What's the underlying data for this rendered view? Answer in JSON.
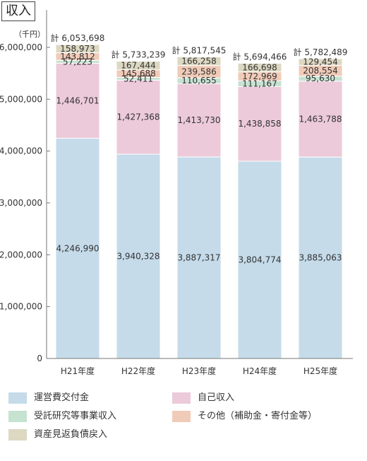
{
  "header": {
    "title": "収入",
    "unit": "（千円）"
  },
  "colors": {
    "operating_grant": "#c5dbea",
    "own_revenue": "#eccada",
    "commissioned_research": "#c6e2d1",
    "other": "#f0cbb8",
    "asset_reversal": "#ddd8c2",
    "axis": "#777777",
    "bar_edge": "#ffffff"
  },
  "legend": [
    {
      "key": "operating_grant",
      "label": "運営費交付金"
    },
    {
      "key": "own_revenue",
      "label": "自己収入"
    },
    {
      "key": "commissioned_research",
      "label": "受託研究等事業収入"
    },
    {
      "key": "other",
      "label": "その他（補助金・寄付金等）"
    },
    {
      "key": "asset_reversal",
      "label": "資産見返負債戻入"
    }
  ],
  "chart_data": {
    "type": "bar",
    "stacked": true,
    "categories": [
      "H21年度",
      "H22年度",
      "H23年度",
      "H24年度",
      "H25年度"
    ],
    "ylim": [
      0,
      6000000
    ],
    "yticks": [
      0,
      1000000,
      2000000,
      3000000,
      4000000,
      5000000,
      6000000
    ],
    "ytick_labels": [
      "0",
      "1,000,000",
      "2,000,000",
      "3,000,000",
      "4,000,000",
      "5,000,000",
      "6,000,000"
    ],
    "series": [
      {
        "key": "operating_grant",
        "name": "運営費交付金",
        "values": [
          4246990,
          3940328,
          3887317,
          3804774,
          3885063
        ],
        "labels": [
          "4,246,990",
          "3,940,328",
          "3,887,317",
          "3,804,774",
          "3,885,063"
        ]
      },
      {
        "key": "own_revenue",
        "name": "自己収入",
        "values": [
          1446701,
          1427368,
          1413730,
          1438858,
          1463788
        ],
        "labels": [
          "1,446,701",
          "1,427,368",
          "1,413,730",
          "1,438,858",
          "1,463,788"
        ]
      },
      {
        "key": "commissioned_research",
        "name": "受託研究等事業収入",
        "values": [
          57223,
          52411,
          110655,
          111167,
          95630
        ],
        "labels": [
          "57,223",
          "52,411",
          "110,655",
          "111,167",
          "95,630"
        ]
      },
      {
        "key": "other",
        "name": "その他（補助金・寄付金等）",
        "values": [
          143812,
          145688,
          239586,
          172969,
          208554
        ],
        "labels": [
          "143,812",
          "145,688",
          "239,586",
          "172,969",
          "208,554"
        ]
      },
      {
        "key": "asset_reversal",
        "name": "資産見返負債戻入",
        "values": [
          158973,
          167444,
          166258,
          166698,
          129454
        ],
        "labels": [
          "158,973",
          "167,444",
          "166,258",
          "166,698",
          "129,454"
        ]
      }
    ],
    "totals": [
      6053698,
      5733239,
      5817545,
      5694466,
      5782489
    ],
    "total_labels": [
      "計 6,053,698",
      "計 5,733,239",
      "計 5,817,545",
      "計 5,694,466",
      "計 5,782,489"
    ]
  }
}
